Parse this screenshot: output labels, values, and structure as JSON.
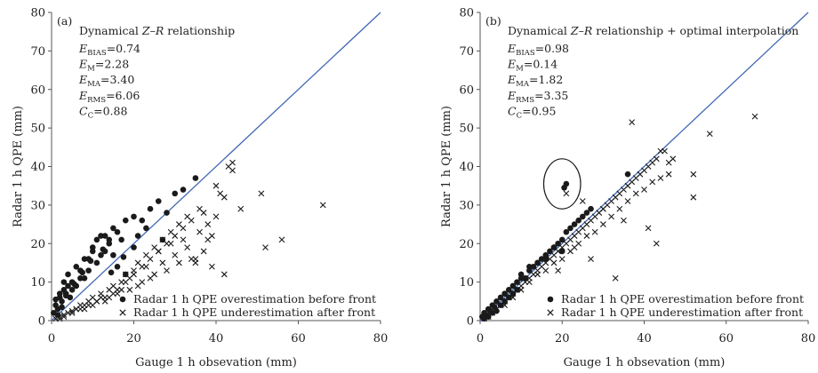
{
  "chart_data": [
    {
      "type": "scatter",
      "panel": "(a)",
      "title": "Dynamical Z–R relationship",
      "title_parts": {
        "prefix": "Dynamical ",
        "z": "Z",
        "dash": "–",
        "r": "R",
        "suffix": " relationship"
      },
      "xlabel": "Gauge 1 h obsevation (mm)",
      "ylabel": "Radar 1 h QPE (mm)",
      "xlim": [
        0,
        80
      ],
      "ylim": [
        0,
        80
      ],
      "xticks": [
        0,
        20,
        40,
        60,
        80
      ],
      "yticks": [
        0,
        10,
        20,
        30,
        40,
        50,
        60,
        70,
        80
      ],
      "reference_line": "1:1",
      "stats": [
        {
          "sym": "E",
          "sub": "BIAS",
          "val": "=0.74"
        },
        {
          "sym": "E",
          "sub": "M",
          "val": "=2.28"
        },
        {
          "sym": "E",
          "sub": "MA",
          "val": "=3.40"
        },
        {
          "sym": "E",
          "sub": "RMS",
          "val": "=6.06"
        },
        {
          "sym": "C",
          "sub": "C",
          "val": "=0.88"
        }
      ],
      "legend": [
        "Radar 1 h QPE overestimation before front",
        "Radar 1 h QPE underestimation after front"
      ],
      "legend_position": "bottom-right",
      "series": [
        {
          "name": "Radar 1 h QPE overestimation before front",
          "marker": "dot",
          "x": [
            0.5,
            1,
            1.5,
            2,
            2.5,
            3,
            3.5,
            4,
            4.5,
            5,
            6,
            7,
            8,
            9,
            10,
            11,
            12,
            13,
            14,
            15,
            16,
            17,
            18,
            20,
            22,
            24,
            26,
            28,
            30,
            32,
            35,
            1,
            2,
            3,
            4,
            5,
            6,
            7,
            8,
            9,
            10,
            11,
            12,
            13,
            14,
            15,
            16,
            18,
            20,
            23,
            27,
            1.5,
            2.5,
            3.5,
            5.5,
            7.5,
            9.5,
            12.5,
            14.5,
            17.5,
            21
          ],
          "y": [
            2,
            4,
            3,
            6,
            5,
            8,
            7,
            9,
            6,
            10,
            9,
            13,
            11,
            16,
            18,
            21,
            17,
            22,
            20,
            24,
            23,
            21,
            26,
            27,
            26,
            29,
            31,
            28,
            33,
            34,
            37,
            5.5,
            7,
            10,
            12,
            8,
            14,
            11,
            16,
            13,
            19,
            15,
            22,
            18,
            21,
            17,
            14,
            12,
            19,
            24,
            21,
            1.5,
            3.5,
            6.5,
            9.5,
            12.5,
            15.5,
            18.5,
            12.5,
            16.5,
            22
          ]
        },
        {
          "name": "Radar 1 h QPE underestimation after front",
          "marker": "x",
          "x": [
            1,
            2,
            3,
            4,
            5,
            6,
            7,
            8,
            9,
            10,
            11,
            12,
            13,
            14,
            15,
            16,
            17,
            18,
            19,
            20,
            21,
            22,
            23,
            24,
            25,
            26,
            27,
            28,
            29,
            30,
            31,
            32,
            33,
            34,
            35,
            36,
            37,
            38,
            39,
            40,
            41,
            42,
            43,
            44,
            46,
            51,
            52,
            56,
            66,
            2,
            3,
            5,
            6,
            8,
            9,
            11,
            12,
            14,
            15,
            17,
            18,
            20,
            21,
            23,
            24,
            26,
            27,
            29,
            30,
            32,
            33,
            35,
            36,
            38,
            40,
            42,
            44,
            7,
            10,
            13,
            16,
            19,
            22,
            25,
            28,
            31,
            34,
            37,
            39
          ],
          "y": [
            0.5,
            1,
            1.5,
            2,
            2.5,
            3,
            4,
            4,
            5,
            6,
            5,
            7,
            6,
            8,
            9,
            8,
            10,
            12,
            11,
            13,
            15,
            14,
            17,
            16,
            19,
            18,
            21,
            20,
            23,
            22,
            25,
            24,
            27,
            26,
            15,
            29,
            28,
            25,
            22,
            35,
            33,
            32,
            40,
            41,
            29,
            33,
            19,
            21,
            30,
            0.5,
            1,
            2,
            3,
            3,
            4,
            5,
            6,
            6,
            7,
            8,
            10,
            12,
            9,
            14,
            11,
            18,
            15,
            20,
            17,
            21,
            19,
            16,
            23,
            21,
            27,
            12,
            39,
            3,
            4,
            5,
            7,
            8,
            10,
            12,
            13,
            15,
            16,
            18,
            14
          ]
        }
      ]
    },
    {
      "type": "scatter",
      "panel": "(b)",
      "title": "Dynamical Z–R relationship + optimal interpolation",
      "title_parts": {
        "prefix": "Dynamical ",
        "z": "Z",
        "dash": "–",
        "r": "R",
        "suffix": " relationship + optimal interpolation"
      },
      "xlabel": "Gauge 1 h obsevation (mm)",
      "ylabel": "Radar 1 h QPE (mm)",
      "xlim": [
        0,
        80
      ],
      "ylim": [
        0,
        80
      ],
      "xticks": [
        0,
        20,
        40,
        60,
        80
      ],
      "yticks": [
        0,
        10,
        20,
        30,
        40,
        50,
        60,
        70,
        80
      ],
      "reference_line": "1:1",
      "stats": [
        {
          "sym": "E",
          "sub": "BIAS",
          "val": "=0.98"
        },
        {
          "sym": "E",
          "sub": "M",
          "val": "=0.14"
        },
        {
          "sym": "E",
          "sub": "MA",
          "val": "=1.82"
        },
        {
          "sym": "E",
          "sub": "RMS",
          "val": "=3.35"
        },
        {
          "sym": "C",
          "sub": "C",
          "val": "=0.95"
        }
      ],
      "annotation": {
        "type": "circle",
        "x": 20,
        "y": 35.5,
        "rx": 4.5,
        "ry": 6.5
      },
      "legend": [
        "Radar 1 h QPE overestimation before front",
        "Radar 1 h QPE underestimation after front"
      ],
      "legend_position": "bottom-right",
      "series": [
        {
          "name": "Radar 1 h QPE overestimation before front",
          "marker": "dot",
          "x": [
            0.5,
            1,
            1.5,
            2,
            2.5,
            3,
            3.5,
            4,
            5,
            6,
            7,
            8,
            9,
            10,
            11,
            12,
            13,
            14,
            15,
            16,
            17,
            18,
            19,
            20,
            21,
            22,
            23,
            24,
            25,
            26,
            27,
            1,
            2,
            3,
            4,
            5,
            6,
            7,
            8,
            9,
            10,
            12,
            14,
            16,
            18,
            20,
            20.5,
            21,
            36
          ],
          "y": [
            1,
            2,
            1.5,
            3,
            2.5,
            4,
            3.5,
            5,
            6,
            7,
            8,
            9,
            10,
            12,
            11,
            13,
            14,
            15,
            16,
            17,
            18,
            19,
            20,
            21,
            23,
            24,
            25,
            26,
            27,
            28,
            29,
            0.5,
            1,
            2,
            2.5,
            4,
            5,
            6,
            7,
            8,
            11,
            14,
            15,
            16,
            19,
            18,
            34.5,
            35.5,
            38
          ]
        },
        {
          "name": "Radar 1 h QPE underestimation after front",
          "marker": "x",
          "x": [
            1,
            2,
            3,
            4,
            5,
            6,
            7,
            8,
            9,
            10,
            11,
            12,
            13,
            14,
            15,
            16,
            17,
            18,
            19,
            20,
            21,
            22,
            23,
            24,
            25,
            26,
            27,
            28,
            29,
            30,
            31,
            32,
            33,
            34,
            35,
            36,
            37,
            38,
            39,
            40,
            41,
            42,
            43,
            44,
            45,
            46,
            47,
            52,
            56,
            67,
            2,
            4,
            6,
            8,
            10,
            12,
            14,
            16,
            18,
            20,
            22,
            24,
            26,
            28,
            30,
            32,
            34,
            36,
            38,
            40,
            42,
            44,
            46,
            21,
            25,
            30,
            35,
            41,
            37,
            19,
            23,
            27,
            33,
            43,
            52
          ],
          "y": [
            0.5,
            1.5,
            2,
            3,
            4,
            5,
            6,
            7,
            8,
            9,
            10,
            11,
            12,
            13,
            14,
            15,
            16,
            17,
            18,
            19,
            20,
            21,
            22,
            23,
            24,
            25,
            26,
            27,
            28,
            29,
            30,
            31,
            32,
            33,
            34,
            35,
            36,
            37,
            38,
            39,
            40,
            41,
            42,
            44,
            44,
            41,
            42,
            38,
            48.5,
            53,
            1,
            3,
            4,
            6,
            8,
            10,
            12,
            13,
            15,
            16,
            18,
            20,
            22,
            23,
            25,
            27,
            29,
            31,
            33,
            34,
            36,
            37,
            38,
            33,
            31,
            29,
            26,
            24,
            51.5,
            13,
            19,
            16,
            11,
            20,
            32
          ]
        }
      ]
    }
  ]
}
